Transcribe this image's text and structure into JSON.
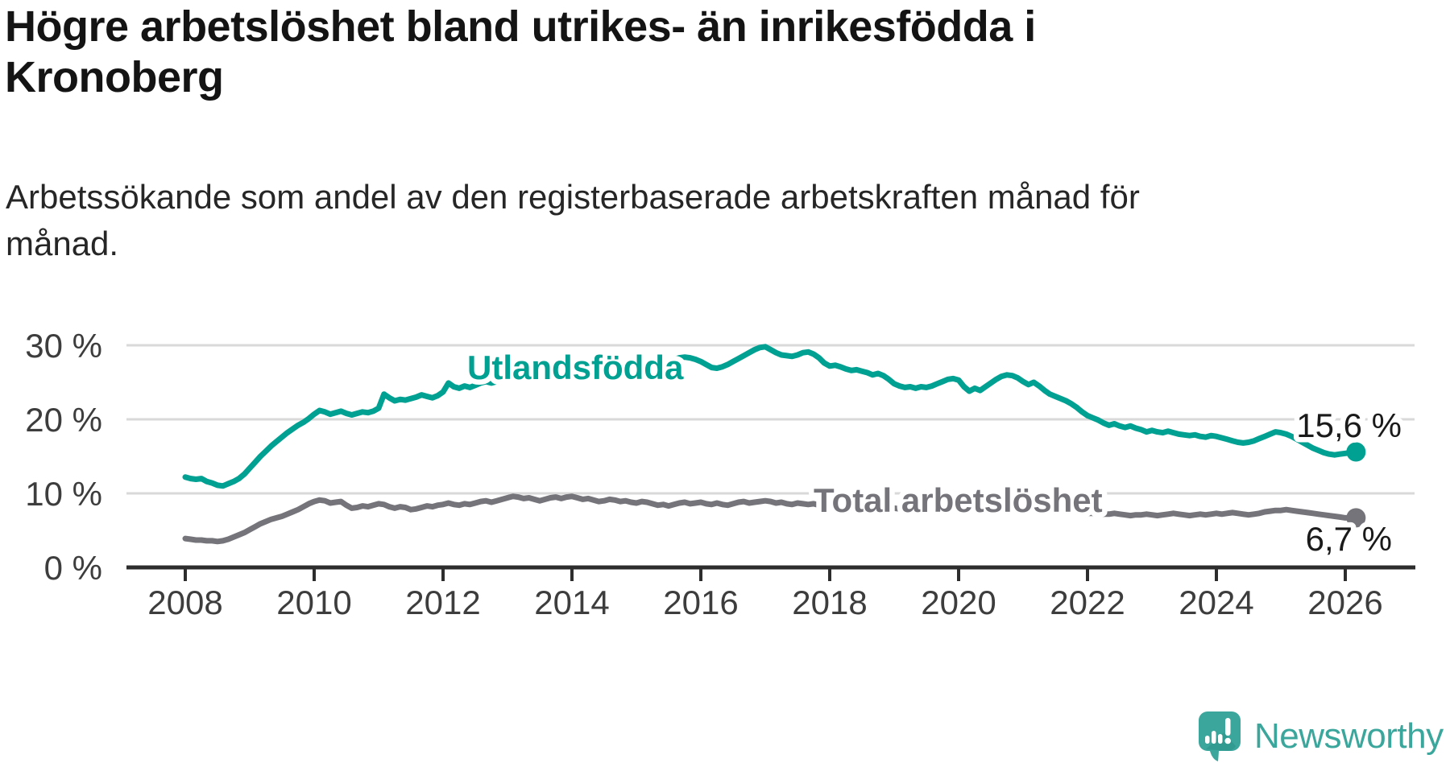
{
  "header": {
    "title_line1": "Högre arbetslöshet bland utrikes- än inrikesfödda i",
    "title_line2": "Kronoberg",
    "subtitle_line1": "Arbetssökande som andel av den registerbaserade arbetskraften månad för",
    "subtitle_line2": "månad."
  },
  "chart_data": {
    "type": "line",
    "title": "Högre arbetslöshet bland utrikes- än inrikesfödda i Kronoberg",
    "subtitle": "Arbetssökande som andel av den registerbaserade arbetskraften månad för månad.",
    "x_start_year": 2008,
    "x_interval": "monthly",
    "x_end": "2026-03",
    "xlim": [
      2007.3,
      2026.6
    ],
    "ylim": [
      0,
      32
    ],
    "grid": true,
    "legend_position": "inline-labels",
    "x_tick_labels": [
      "2008",
      "2010",
      "2012",
      "2014",
      "2016",
      "2018",
      "2020",
      "2022",
      "2024",
      "2026"
    ],
    "y_ticks": [
      {
        "value": 0,
        "label": "0 %"
      },
      {
        "value": 10,
        "label": "10 %"
      },
      {
        "value": 20,
        "label": "20 %"
      },
      {
        "value": 30,
        "label": "30 %"
      }
    ],
    "series": [
      {
        "name": "Total arbetslöshet",
        "color": "#74747a",
        "end_label": "6,7 %",
        "end_value": 6.7,
        "values": [
          3.9,
          3.8,
          3.7,
          3.7,
          3.6,
          3.6,
          3.5,
          3.6,
          3.8,
          4.1,
          4.4,
          4.7,
          5.1,
          5.5,
          5.9,
          6.2,
          6.5,
          6.7,
          6.9,
          7.2,
          7.5,
          7.8,
          8.2,
          8.6,
          8.9,
          9.1,
          9.0,
          8.7,
          8.8,
          8.9,
          8.4,
          8.0,
          8.1,
          8.3,
          8.2,
          8.4,
          8.6,
          8.5,
          8.2,
          8.0,
          8.2,
          8.1,
          7.8,
          7.9,
          8.1,
          8.3,
          8.2,
          8.4,
          8.5,
          8.7,
          8.5,
          8.4,
          8.6,
          8.5,
          8.7,
          8.9,
          9.0,
          8.8,
          9.0,
          9.2,
          9.4,
          9.6,
          9.5,
          9.3,
          9.4,
          9.2,
          9.0,
          9.2,
          9.4,
          9.5,
          9.3,
          9.5,
          9.6,
          9.4,
          9.2,
          9.3,
          9.1,
          8.9,
          9.0,
          9.2,
          9.1,
          8.9,
          9.0,
          8.8,
          8.7,
          8.9,
          8.8,
          8.6,
          8.4,
          8.5,
          8.3,
          8.5,
          8.7,
          8.8,
          8.6,
          8.7,
          8.8,
          8.6,
          8.5,
          8.7,
          8.5,
          8.4,
          8.6,
          8.8,
          8.9,
          8.7,
          8.8,
          8.9,
          9.0,
          8.9,
          8.7,
          8.8,
          8.6,
          8.5,
          8.7,
          8.6,
          8.5,
          8.6,
          8.4,
          8.5,
          8.4,
          8.3,
          8.2,
          8.1,
          8.0,
          8.0,
          7.9,
          7.9,
          7.8,
          7.8,
          7.9,
          8.0,
          8.0,
          7.9,
          7.9,
          7.8,
          7.8,
          7.9,
          7.9,
          8.0,
          8.1,
          8.2,
          8.3,
          8.4,
          8.6,
          8.8,
          9.1,
          9.5,
          9.7,
          9.7,
          9.6,
          9.5,
          9.3,
          9.2,
          9.0,
          8.9,
          8.8,
          8.7,
          8.5,
          8.3,
          8.1,
          7.9,
          7.8,
          7.7,
          7.6,
          7.5,
          7.4,
          7.4,
          7.3,
          7.3,
          7.2,
          7.2,
          7.2,
          7.3,
          7.2,
          7.1,
          7.0,
          7.1,
          7.1,
          7.2,
          7.1,
          7.0,
          7.1,
          7.2,
          7.3,
          7.2,
          7.1,
          7.0,
          7.1,
          7.2,
          7.1,
          7.2,
          7.3,
          7.2,
          7.3,
          7.4,
          7.3,
          7.2,
          7.1,
          7.2,
          7.3,
          7.5,
          7.6,
          7.7,
          7.7,
          7.8,
          7.7,
          7.6,
          7.5,
          7.4,
          7.3,
          7.2,
          7.1,
          7.0,
          6.9,
          6.8,
          6.7,
          6.7,
          6.7
        ]
      },
      {
        "name": "Utlandsfödda",
        "color": "#00a092",
        "end_label": "15,6 %",
        "end_value": 15.6,
        "values": [
          12.2,
          12.0,
          11.9,
          12.0,
          11.6,
          11.4,
          11.1,
          11.0,
          11.3,
          11.6,
          12.0,
          12.6,
          13.4,
          14.2,
          15.0,
          15.7,
          16.4,
          17.0,
          17.6,
          18.2,
          18.7,
          19.2,
          19.6,
          20.1,
          20.7,
          21.2,
          21.0,
          20.7,
          20.9,
          21.1,
          20.8,
          20.6,
          20.8,
          21.0,
          20.9,
          21.1,
          21.5,
          23.4,
          22.9,
          22.5,
          22.7,
          22.6,
          22.8,
          23.0,
          23.3,
          23.1,
          22.9,
          23.2,
          23.7,
          24.9,
          24.4,
          24.2,
          24.5,
          24.3,
          24.6,
          24.9,
          25.1,
          24.9,
          25.1,
          25.3,
          25.5,
          25.6,
          25.5,
          25.7,
          25.8,
          25.7,
          25.9,
          26.0,
          25.9,
          26.1,
          26.2,
          26.1,
          26.3,
          26.5,
          26.4,
          26.6,
          26.7,
          26.6,
          26.8,
          27.0,
          27.1,
          27.0,
          27.2,
          27.3,
          27.4,
          27.6,
          27.5,
          27.7,
          27.8,
          27.7,
          27.9,
          28.1,
          28.3,
          28.4,
          28.3,
          28.1,
          27.8,
          27.4,
          27.0,
          26.9,
          27.1,
          27.4,
          27.8,
          28.2,
          28.6,
          29.0,
          29.4,
          29.7,
          29.8,
          29.4,
          29.0,
          28.7,
          28.6,
          28.5,
          28.7,
          29.0,
          29.1,
          28.8,
          28.3,
          27.6,
          27.2,
          27.3,
          27.1,
          26.8,
          26.6,
          26.7,
          26.5,
          26.3,
          26.0,
          26.2,
          25.9,
          25.4,
          24.8,
          24.5,
          24.3,
          24.4,
          24.2,
          24.4,
          24.3,
          24.5,
          24.8,
          25.1,
          25.4,
          25.5,
          25.3,
          24.4,
          23.8,
          24.2,
          23.9,
          24.4,
          24.9,
          25.4,
          25.8,
          26.0,
          25.9,
          25.6,
          25.1,
          24.7,
          25.0,
          24.5,
          23.9,
          23.4,
          23.1,
          22.8,
          22.5,
          22.1,
          21.6,
          21.0,
          20.5,
          20.2,
          19.9,
          19.5,
          19.2,
          19.4,
          19.1,
          18.9,
          19.1,
          18.8,
          18.6,
          18.3,
          18.5,
          18.3,
          18.2,
          18.4,
          18.2,
          18.0,
          17.9,
          17.8,
          17.9,
          17.7,
          17.6,
          17.8,
          17.7,
          17.5,
          17.3,
          17.1,
          16.9,
          16.8,
          16.9,
          17.1,
          17.4,
          17.7,
          18.0,
          18.3,
          18.2,
          18.0,
          17.7,
          17.3,
          16.9,
          16.5,
          16.1,
          15.8,
          15.5,
          15.3,
          15.2,
          15.3,
          15.4,
          15.5,
          15.6
        ]
      }
    ]
  },
  "footer": {
    "brand": "Newsworthy",
    "brand_color": "#3ba69c"
  }
}
